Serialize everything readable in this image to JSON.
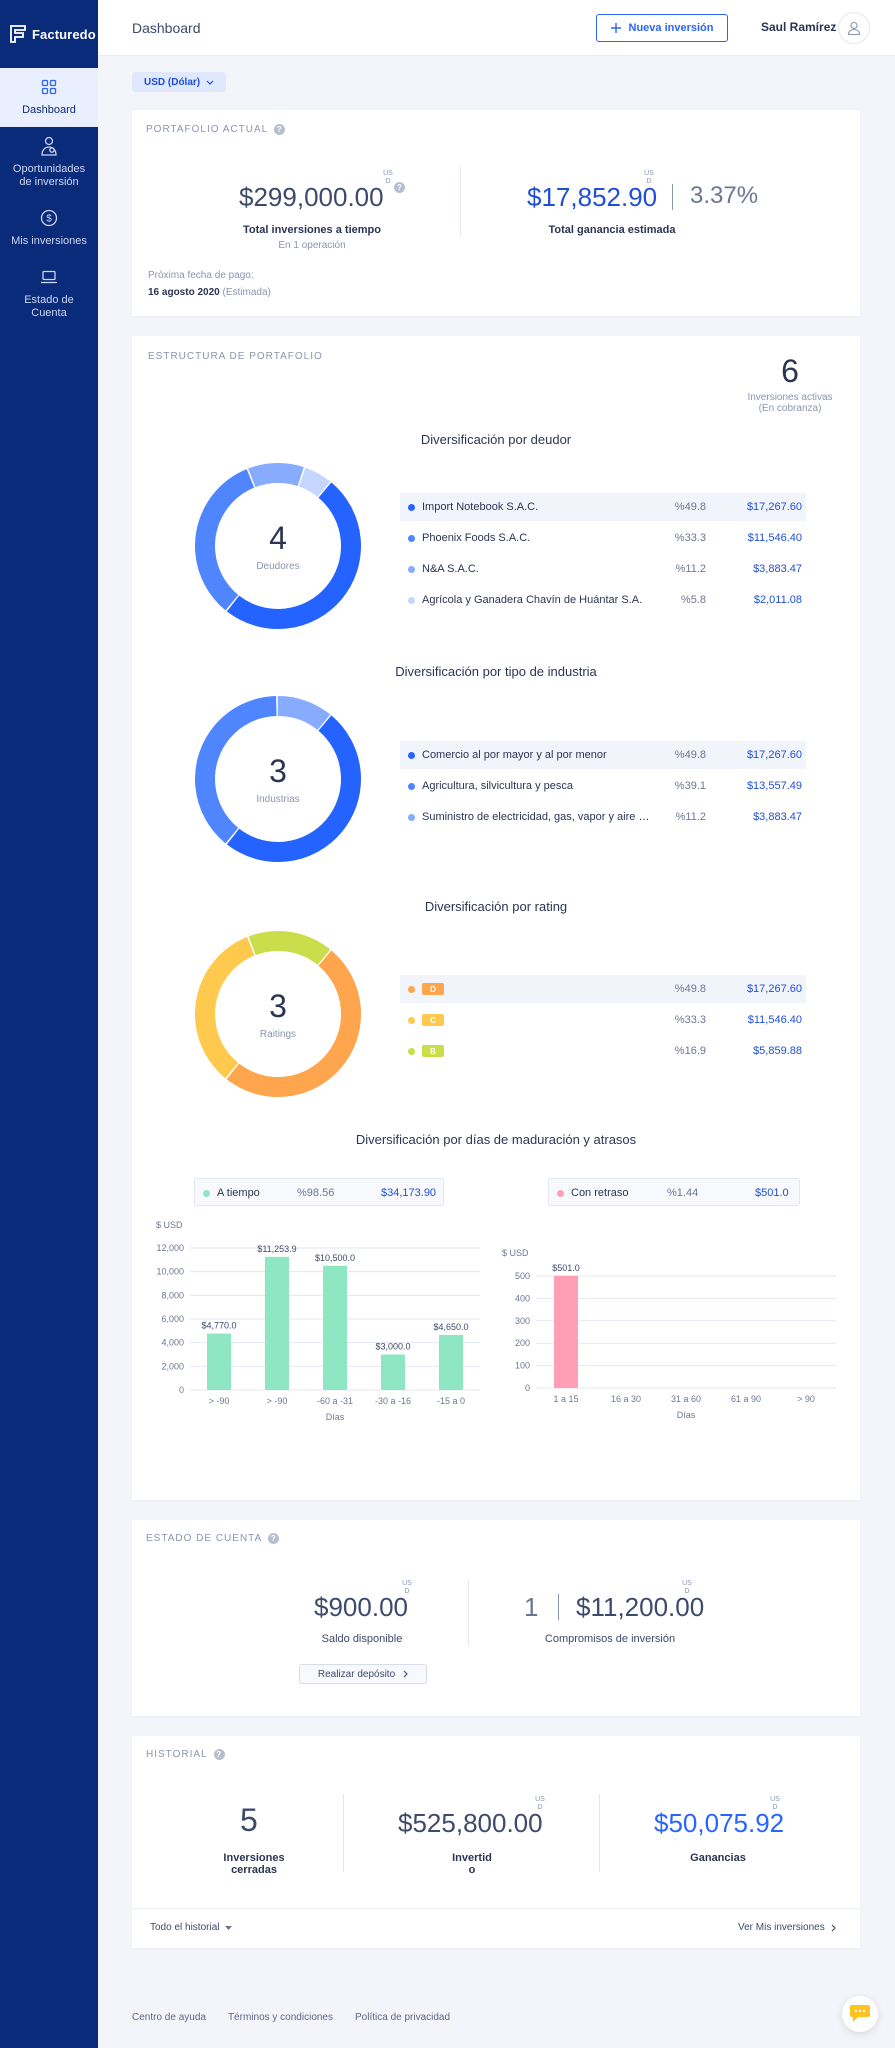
{
  "app": {
    "brand": "Facturedo",
    "page_title": "Dashboard"
  },
  "header": {
    "new_investment_label": "Nueva inversión",
    "user_name": "Saul Ramírez"
  },
  "sidebar": {
    "items": [
      {
        "label": "Dashboard",
        "icon": "grid-icon"
      },
      {
        "label": "Oportunidades de inversión",
        "icon": "investor-icon"
      },
      {
        "label": "Mis inversiones",
        "icon": "dollar-circle-icon"
      },
      {
        "label": "Estado de Cuenta",
        "icon": "laptop-icon"
      }
    ]
  },
  "currency_selector": {
    "value": "USD (Dólar)"
  },
  "portfolio": {
    "section_label": "PORTAFOLIO ACTUAL",
    "currency_sup": "US\nD",
    "total_investments": "$299,000.00",
    "total_investments_label": "Total inversiones a tiempo",
    "total_investments_sub": "En 1 operación",
    "total_gain": "$17,852.90",
    "gain_pct": "3.37%",
    "total_gain_label": "Total ganancia estimada",
    "next_payment_label": "Próxima fecha de pago:",
    "next_payment_date": "16 agosto 2020",
    "next_payment_note": "(Estimada)"
  },
  "structure": {
    "section_label": "ESTRUCTURA DE PORTAFOLIO",
    "active_count": "6",
    "active_label": "Inversiones activas",
    "active_sub": "(En cobranza)",
    "debtor": {
      "title": "Diversificación por deudor",
      "count": "4",
      "caption": "Deudores",
      "items": [
        {
          "name": "Import Notebook S.A.C.",
          "pct": "%49.8",
          "value": "$17,267.60",
          "share": 49.8,
          "color": "#2463ff"
        },
        {
          "name": "Phoenix Foods S.A.C.",
          "pct": "%33.3",
          "value": "$11,546.40",
          "share": 33.3,
          "color": "#4f86ff"
        },
        {
          "name": "N&A S.A.C.",
          "pct": "%11.2",
          "value": "$3,883.47",
          "share": 11.2,
          "color": "#87abff"
        },
        {
          "name": "Agrícola y Ganadera Chavín de Huántar S.A.",
          "pct": "%5.8",
          "value": "$2,011.08",
          "share": 5.8,
          "color": "#c6d7ff"
        }
      ]
    },
    "industry": {
      "title": "Diversificación por tipo de industria",
      "count": "3",
      "caption": "Industrias",
      "items": [
        {
          "name": "Comercio al por mayor y al por menor",
          "pct": "%49.8",
          "value": "$17,267.60",
          "share": 49.8,
          "color": "#2463ff"
        },
        {
          "name": "Agricultura, silvicultura y pesca",
          "pct": "%39.1",
          "value": "$13,557.49",
          "share": 39.1,
          "color": "#4f86ff"
        },
        {
          "name": "Suministro de electricidad, gas, vapor y aire acondicionado",
          "pct": "%11.2",
          "value": "$3,883.47",
          "share": 11.2,
          "color": "#87abff"
        }
      ]
    },
    "rating": {
      "title": "Diversificación por rating",
      "count": "3",
      "caption": "Raitings",
      "items": [
        {
          "name": "D",
          "pct": "%49.8",
          "value": "$17,267.60",
          "share": 49.8,
          "color": "#ffa54d"
        },
        {
          "name": "C",
          "pct": "%33.3",
          "value": "$11,546.40",
          "share": 33.3,
          "color": "#ffc94d"
        },
        {
          "name": "B",
          "pct": "%16.9",
          "value": "$5,859.88",
          "share": 16.9,
          "color": "#c9de4a"
        }
      ]
    },
    "maturity": {
      "title": "Diversificación por días de maduración y atrasos",
      "on_time": {
        "label": "A tiempo",
        "pct": "%98.56",
        "value": "$34,173.90",
        "color": "#8ee6c2"
      },
      "late": {
        "label": "Con retraso",
        "pct": "%1.44",
        "value": "$501.0",
        "color": "#ff9fb5"
      }
    }
  },
  "chart_data": [
    {
      "type": "bar",
      "title": "",
      "ylabel": "$ USD",
      "xlabel": "Días",
      "categories": [
        "> -90",
        "> -90",
        "-60 a -31",
        "-30 a -16",
        "-15 a 0"
      ],
      "values": [
        4770.0,
        11253.9,
        10500.0,
        3000.0,
        4650.0
      ],
      "data_labels": [
        "$4,770.0",
        "$11,253.9",
        "$10,500.0",
        "$3,000.0",
        "$4,650.0"
      ],
      "yticks": [
        "0",
        "2,000",
        "4,000",
        "6,000",
        "8,000",
        "10,000",
        "12,000"
      ],
      "ylim": [
        0,
        12000
      ],
      "color": "#8ee6c2",
      "grid": true
    },
    {
      "type": "bar",
      "title": "",
      "ylabel": "$ USD",
      "xlabel": "Días",
      "categories": [
        "1 a 15",
        "16 a 30",
        "31 a 60",
        "61 a 90",
        "> 90"
      ],
      "values": [
        501.0,
        0,
        0,
        0,
        0
      ],
      "data_labels": [
        "$501.0",
        "",
        "",
        "",
        ""
      ],
      "yticks": [
        "0",
        "100",
        "200",
        "300",
        "400",
        "500"
      ],
      "ylim": [
        0,
        500
      ],
      "color": "#ff9fb5",
      "grid": true
    }
  ],
  "account": {
    "section_label": "ESTADO DE CUENTA",
    "balance": "$900.00",
    "balance_label": "Saldo disponible",
    "commitments_count": "1",
    "commitments_amount": "$11,200.00",
    "commitments_label": "Compromisos de inversión",
    "deposit_button": "Realizar depósito"
  },
  "history": {
    "section_label": "HISTORIAL",
    "closed_count": "5",
    "closed_label": "Inversiones cerradas",
    "invested": "$525,800.00",
    "invested_label": "Invertid\no",
    "earnings": "$50,075.92",
    "earnings_label": "Ganancias",
    "filter_label": "Todo el historial",
    "see_all_link": "Ver Mis inversiones"
  },
  "footer": {
    "links": [
      "Centro de ayuda",
      "Términos y condiciones",
      "Política de privacidad"
    ]
  }
}
